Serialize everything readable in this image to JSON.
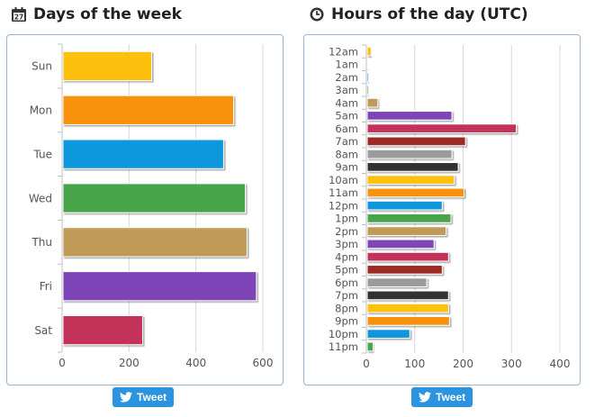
{
  "left": {
    "heading": "Days of the week",
    "icon": "calendar-icon",
    "calendar_day": "27",
    "tweet_label": "Tweet"
  },
  "right": {
    "heading": "Hours of the day (UTC)",
    "icon": "clock-icon",
    "tweet_label": "Tweet"
  },
  "chart_data": [
    {
      "type": "bar",
      "orientation": "horizontal",
      "title": "Days of the week",
      "categories": [
        "Sun",
        "Mon",
        "Tue",
        "Wed",
        "Thu",
        "Fri",
        "Sat"
      ],
      "values": [
        265,
        510,
        480,
        545,
        550,
        578,
        238
      ],
      "colors": [
        "#fdc010",
        "#f8920a",
        "#0e98dd",
        "#46a44a",
        "#c19a58",
        "#7e45b8",
        "#c4305a"
      ],
      "xlim": [
        0,
        600
      ],
      "xticks": [
        0,
        200,
        400,
        600
      ],
      "grid": true
    },
    {
      "type": "bar",
      "orientation": "horizontal",
      "title": "Hours of the day (UTC)",
      "categories": [
        "12am",
        "1am",
        "2am",
        "3am",
        "4am",
        "5am",
        "6am",
        "7am",
        "8am",
        "9am",
        "10am",
        "11am",
        "12pm",
        "1pm",
        "2pm",
        "3pm",
        "4pm",
        "5pm",
        "6pm",
        "7pm",
        "8pm",
        "9pm",
        "10pm",
        "11pm"
      ],
      "values": [
        8,
        1,
        3,
        3,
        22,
        175,
        308,
        203,
        175,
        188,
        180,
        200,
        155,
        173,
        163,
        138,
        168,
        155,
        123,
        168,
        168,
        170,
        88,
        12
      ],
      "colors": [
        "#fdc010",
        "#f8920a",
        "#0e98dd",
        "#46a44a",
        "#c19a58",
        "#7e45b8",
        "#c4305a",
        "#9e2a25",
        "#9b9b9b",
        "#333333",
        "#fdc010",
        "#f8920a",
        "#0e98dd",
        "#46a44a",
        "#c19a58",
        "#7e45b8",
        "#c4305a",
        "#9e2a25",
        "#9b9b9b",
        "#333333",
        "#fdc010",
        "#f8920a",
        "#0e98dd",
        "#46a44a"
      ],
      "xlim": [
        0,
        400
      ],
      "xticks": [
        0,
        100,
        200,
        300,
        400
      ],
      "grid": true
    }
  ]
}
